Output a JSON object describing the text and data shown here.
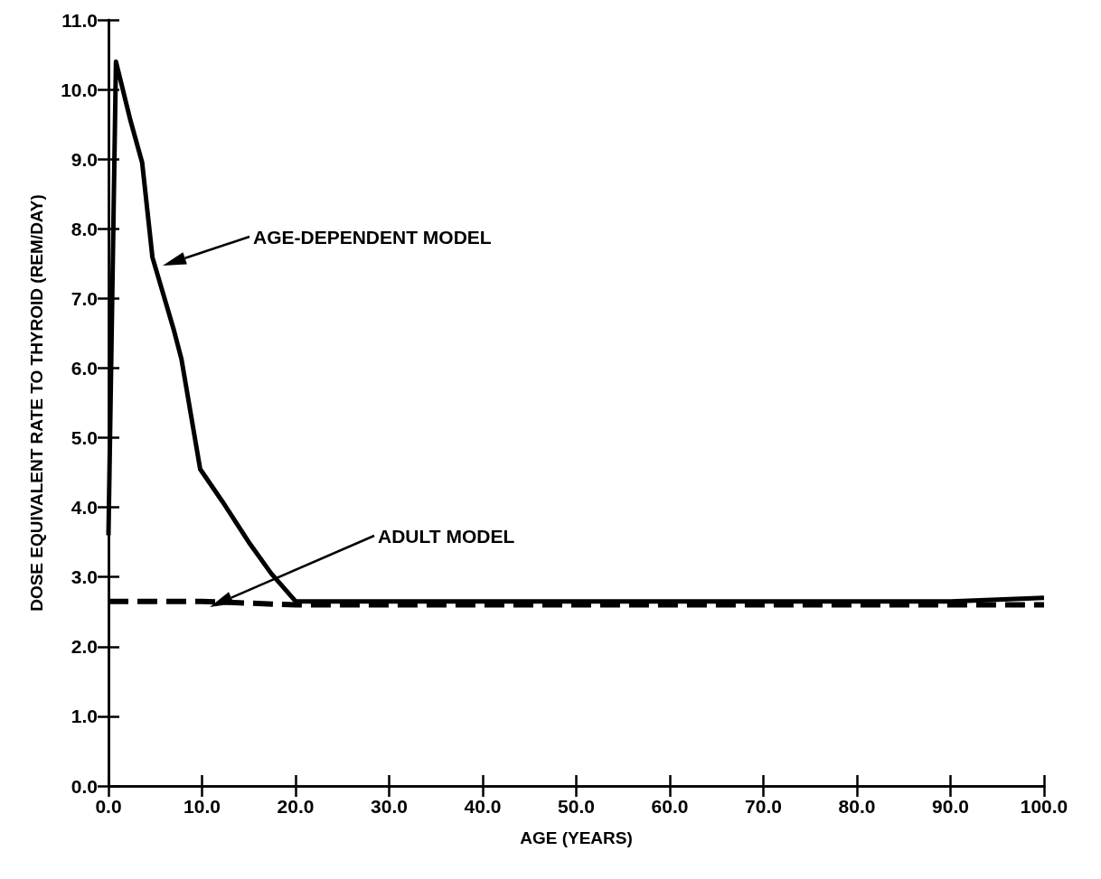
{
  "chart_data": {
    "type": "line",
    "xlabel": "AGE (YEARS)",
    "ylabel": "DOSE EQUIVALENT RATE TO THYROID (REM/DAY)",
    "series": [
      {
        "color": "#000000",
        "line_style": "solid",
        "x": [
          0,
          0.8,
          2.3,
          3.6,
          4.7,
          7.0,
          7.8,
          9.8,
          12.2,
          15.0,
          17.4,
          20,
          30,
          40,
          50,
          60,
          70,
          80,
          90,
          100
        ],
        "values": [
          3.6,
          10.4,
          9.58,
          8.95,
          7.59,
          6.54,
          6.13,
          4.55,
          4.08,
          3.5,
          3.05,
          2.65,
          2.65,
          2.65,
          2.65,
          2.65,
          2.65,
          2.65,
          2.65,
          2.7
        ]
      },
      {
        "color": "#000000",
        "line_style": "dashed",
        "x": [
          0,
          10,
          20,
          30,
          40,
          50,
          60,
          70,
          80,
          90,
          100
        ],
        "values": [
          2.65,
          2.65,
          2.6,
          2.6,
          2.6,
          2.6,
          2.6,
          2.6,
          2.6,
          2.6,
          2.6
        ]
      }
    ],
    "annotations": [
      "AGE-DEPENDENT MODEL",
      "ADULT MODEL"
    ],
    "xlim": [
      0,
      100
    ],
    "ylim": [
      0,
      11
    ],
    "xticks": [
      {
        "value": 0,
        "label": "0.0"
      },
      {
        "value": 10,
        "label": "10.0"
      },
      {
        "value": 20,
        "label": "20.0"
      },
      {
        "value": 30,
        "label": "30.0"
      },
      {
        "value": 40,
        "label": "40.0"
      },
      {
        "value": 50,
        "label": "50.0"
      },
      {
        "value": 60,
        "label": "60.0"
      },
      {
        "value": 70,
        "label": "70.0"
      },
      {
        "value": 80,
        "label": "80.0"
      },
      {
        "value": 90,
        "label": "90.0"
      },
      {
        "value": 100,
        "label": "100.0"
      }
    ],
    "yticks": [
      {
        "value": 0,
        "label": "0.0"
      },
      {
        "value": 1,
        "label": "1.0"
      },
      {
        "value": 2,
        "label": "2.0"
      },
      {
        "value": 3,
        "label": "3.0"
      },
      {
        "value": 4,
        "label": "4.0"
      },
      {
        "value": 5,
        "label": "5.0"
      },
      {
        "value": 6,
        "label": "6.0"
      },
      {
        "value": 7,
        "label": "7.0"
      },
      {
        "value": 8,
        "label": "8.0"
      },
      {
        "value": 9,
        "label": "9.0"
      },
      {
        "value": 10,
        "label": "10.0"
      },
      {
        "value": 11,
        "label": "11.0"
      }
    ],
    "grid": false,
    "marker": "none"
  }
}
